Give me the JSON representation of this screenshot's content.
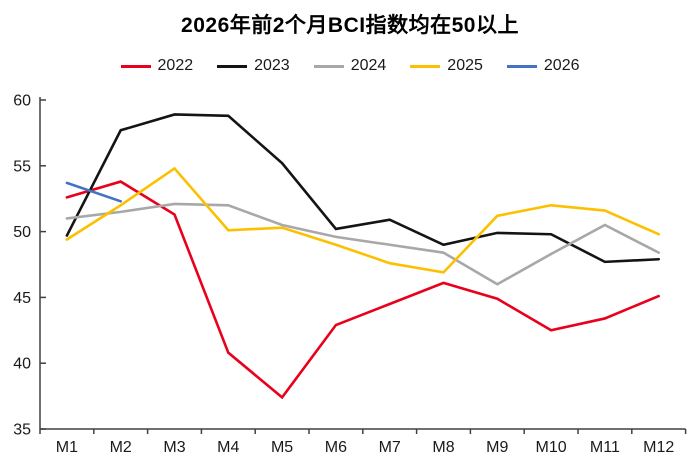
{
  "header": {
    "title": "2026年前2个月BCI指数均在50以上"
  },
  "axes": {
    "text_color": "#1a1a1a",
    "line_color": "#404040"
  },
  "chart_data": {
    "type": "line",
    "title": "2026年前2个月BCI指数均在50以上",
    "categories": [
      "M1",
      "M2",
      "M3",
      "M4",
      "M5",
      "M6",
      "M7",
      "M8",
      "M9",
      "M10",
      "M11",
      "M12"
    ],
    "series": [
      {
        "name": "2022",
        "color": "#e8001c",
        "values": [
          52.6,
          53.8,
          51.3,
          40.8,
          37.4,
          42.9,
          44.5,
          46.1,
          44.9,
          42.5,
          43.4,
          45.1
        ]
      },
      {
        "name": "2023",
        "color": "#141414",
        "values": [
          49.7,
          57.7,
          58.9,
          58.8,
          55.2,
          50.2,
          50.9,
          49.0,
          49.9,
          49.8,
          47.7,
          47.9
        ]
      },
      {
        "name": "2024",
        "color": "#a8a8a8",
        "values": [
          51.0,
          51.5,
          52.1,
          52.0,
          50.5,
          49.6,
          49.0,
          48.4,
          46.0,
          48.3,
          50.5,
          48.4
        ]
      },
      {
        "name": "2025",
        "color": "#fcc000",
        "values": [
          49.4,
          52.0,
          54.8,
          50.1,
          50.3,
          49.0,
          47.6,
          46.9,
          51.2,
          52.0,
          51.6,
          49.8
        ]
      },
      {
        "name": "2026",
        "color": "#4472c4",
        "values": [
          53.7,
          52.3,
          null,
          null,
          null,
          null,
          null,
          null,
          null,
          null,
          null,
          null
        ]
      }
    ],
    "xlabel": "",
    "ylabel": "",
    "ylim": [
      35,
      60
    ],
    "yticks": [
      35,
      40,
      45,
      50,
      55,
      60
    ],
    "grid": false,
    "legend_position": "top"
  }
}
